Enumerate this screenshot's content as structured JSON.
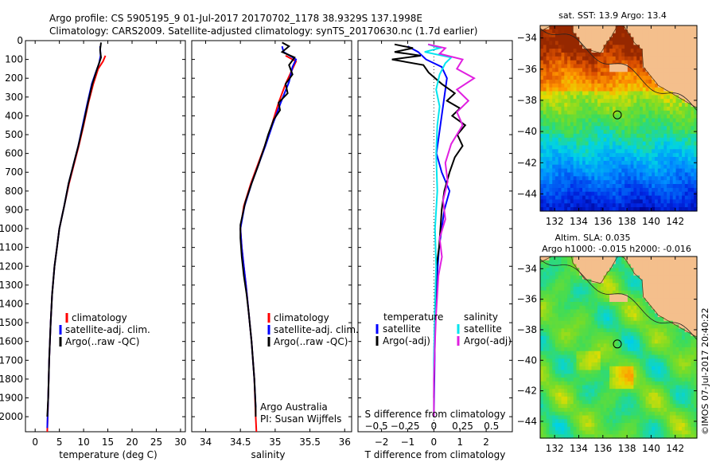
{
  "title": {
    "line1": "Argo profile: CS 5905195_9 01-Jul-2017 20170702_1178 38.9329S 137.1998E",
    "line2": "Climatology: CARS2009. Satellite-adjusted climatology: synTS_20170630.nc (1.7d earlier)"
  },
  "colors": {
    "climatology": "#ff0000",
    "satellite": "#0000ff",
    "argo": "#000000",
    "sal_satellite": "#00e5ee",
    "sal_argo": "#e020e0",
    "land": "#f4bf8c"
  },
  "chart_data": [
    {
      "type": "line",
      "name": "temperature-profile",
      "xlabel": "temperature (deg C)",
      "ylabel": "",
      "xlim": [
        -2,
        31
      ],
      "ylim": [
        2080,
        0
      ],
      "xticks": [
        0,
        5,
        10,
        15,
        20,
        25,
        30
      ],
      "yticks": [
        0,
        100,
        200,
        300,
        400,
        500,
        600,
        700,
        800,
        900,
        1000,
        1100,
        1200,
        1300,
        1400,
        1500,
        1600,
        1700,
        1800,
        1900,
        2000
      ],
      "legend": [
        "climatology",
        "satellite-adj. clim.",
        "Argo(..raw -QC)"
      ],
      "series": [
        {
          "name": "climatology",
          "color": "#ff0000",
          "points": [
            [
              14.5,
              80
            ],
            [
              14.0,
              110
            ],
            [
              13.0,
              150
            ],
            [
              12.0,
              230
            ],
            [
              11.0,
              330
            ],
            [
              10.0,
              450
            ],
            [
              9.0,
              560
            ],
            [
              8.0,
              660
            ],
            [
              7.0,
              760
            ],
            [
              6.0,
              880
            ],
            [
              5.0,
              1000
            ],
            [
              4.5,
              1100
            ],
            [
              4.0,
              1200
            ],
            [
              3.5,
              1350
            ],
            [
              3.2,
              1500
            ],
            [
              2.9,
              1700
            ],
            [
              2.7,
              1900
            ],
            [
              2.5,
              2080
            ]
          ]
        },
        {
          "name": "satellite-adj. clim.",
          "color": "#0000ff",
          "points": [
            [
              13.4,
              30
            ],
            [
              13.5,
              80
            ],
            [
              13.2,
              120
            ],
            [
              12.5,
              170
            ],
            [
              11.7,
              230
            ],
            [
              10.8,
              330
            ],
            [
              9.8,
              450
            ],
            [
              8.9,
              560
            ],
            [
              7.9,
              660
            ],
            [
              6.9,
              760
            ],
            [
              6.0,
              880
            ],
            [
              5.0,
              1000
            ],
            [
              4.5,
              1100
            ],
            [
              4.0,
              1200
            ],
            [
              3.5,
              1350
            ],
            [
              3.2,
              1500
            ],
            [
              2.9,
              1700
            ],
            [
              2.7,
              1900
            ],
            [
              2.5,
              2060
            ]
          ]
        },
        {
          "name": "Argo(..raw -QC)",
          "color": "#000000",
          "points": [
            [
              13.6,
              10
            ],
            [
              13.4,
              50
            ],
            [
              13.6,
              90
            ],
            [
              12.8,
              150
            ],
            [
              11.8,
              230
            ],
            [
              10.9,
              330
            ],
            [
              9.9,
              450
            ],
            [
              8.9,
              560
            ],
            [
              7.9,
              660
            ],
            [
              6.9,
              760
            ],
            [
              6.0,
              880
            ],
            [
              5.0,
              1000
            ],
            [
              4.5,
              1100
            ],
            [
              4.0,
              1200
            ],
            [
              3.5,
              1350
            ],
            [
              3.2,
              1500
            ],
            [
              2.9,
              1700
            ],
            [
              2.7,
              1900
            ],
            [
              2.5,
              2000
            ]
          ]
        }
      ]
    },
    {
      "type": "line",
      "name": "salinity-profile",
      "xlabel": "salinity",
      "xlim": [
        33.8,
        36.1
      ],
      "ylim": [
        2080,
        0
      ],
      "xticks": [
        34,
        34.5,
        35,
        35.5,
        36
      ],
      "legend": [
        "climatology",
        "satellite-adj. clim.",
        "Argo(..raw -QC)"
      ],
      "annotation": [
        "Argo Australia",
        "PI: Susan Wijffels"
      ],
      "series": [
        {
          "name": "climatology",
          "color": "#ff0000",
          "points": [
            [
              35.15,
              80
            ],
            [
              35.3,
              110
            ],
            [
              35.25,
              150
            ],
            [
              35.15,
              230
            ],
            [
              35.05,
              330
            ],
            [
              34.95,
              450
            ],
            [
              34.85,
              560
            ],
            [
              34.75,
              660
            ],
            [
              34.65,
              760
            ],
            [
              34.55,
              880
            ],
            [
              34.5,
              1000
            ],
            [
              34.52,
              1100
            ],
            [
              34.55,
              1200
            ],
            [
              34.58,
              1300
            ],
            [
              34.62,
              1450
            ],
            [
              34.66,
              1600
            ],
            [
              34.7,
              1800
            ],
            [
              34.72,
              2000
            ],
            [
              34.73,
              2080
            ]
          ]
        },
        {
          "name": "satellite-adj. clim.",
          "color": "#0000ff",
          "points": [
            [
              35.1,
              30
            ],
            [
              35.12,
              60
            ],
            [
              35.3,
              100
            ],
            [
              35.25,
              140
            ],
            [
              35.2,
              220
            ],
            [
              35.08,
              330
            ],
            [
              34.96,
              450
            ],
            [
              34.86,
              560
            ],
            [
              34.76,
              660
            ],
            [
              34.66,
              760
            ],
            [
              34.56,
              880
            ],
            [
              34.5,
              1000
            ],
            [
              34.52,
              1100
            ],
            [
              34.55,
              1200
            ],
            [
              34.58,
              1300
            ],
            [
              34.62,
              1450
            ],
            [
              34.66,
              1600
            ],
            [
              34.7,
              1800
            ],
            [
              34.72,
              1950
            ]
          ]
        },
        {
          "name": "Argo(..raw -QC)",
          "color": "#000000",
          "points": [
            [
              35.1,
              10
            ],
            [
              35.2,
              30
            ],
            [
              35.1,
              60
            ],
            [
              35.28,
              90
            ],
            [
              35.2,
              130
            ],
            [
              35.25,
              180
            ],
            [
              35.15,
              230
            ],
            [
              35.18,
              280
            ],
            [
              35.05,
              330
            ],
            [
              35.07,
              370
            ],
            [
              34.98,
              420
            ],
            [
              34.9,
              500
            ],
            [
              34.85,
              560
            ],
            [
              34.76,
              660
            ],
            [
              34.66,
              760
            ],
            [
              34.57,
              860
            ],
            [
              34.5,
              980
            ],
            [
              34.5,
              1050
            ],
            [
              34.52,
              1150
            ],
            [
              34.55,
              1250
            ],
            [
              34.59,
              1350
            ],
            [
              34.62,
              1450
            ],
            [
              34.66,
              1600
            ],
            [
              34.7,
              1800
            ],
            [
              34.72,
              1950
            ],
            [
              34.72,
              2000
            ]
          ]
        }
      ]
    },
    {
      "type": "line",
      "name": "difference-profile",
      "xlabel": "T difference from climatology",
      "xlabel_top": "S difference from climatology",
      "xlim": [
        -2.9,
        3.0
      ],
      "ylim": [
        2080,
        0
      ],
      "xticks": [
        -2,
        -1,
        0,
        1,
        2
      ],
      "xticks_top": [
        -0.5,
        -0.25,
        0,
        0.25,
        0.5
      ],
      "legend_temperature_header": "temperature",
      "legend_salinity_header": "salinity",
      "legend": [
        "satellite",
        "Argo(-adj)",
        "satellite",
        "Argo(-adj)"
      ],
      "series": [
        {
          "name": "T satellite",
          "color": "#0000ff",
          "points": [
            [
              -1.0,
              30
            ],
            [
              -0.6,
              60
            ],
            [
              -0.3,
              100
            ],
            [
              0.3,
              140
            ],
            [
              0.5,
              200
            ],
            [
              0.4,
              300
            ],
            [
              0.3,
              400
            ],
            [
              0.2,
              500
            ],
            [
              0.1,
              600
            ],
            [
              0.3,
              700
            ],
            [
              0.6,
              800
            ],
            [
              0.4,
              900
            ],
            [
              0.3,
              1000
            ],
            [
              0.2,
              1100
            ],
            [
              0.15,
              1200
            ],
            [
              0.1,
              1300
            ],
            [
              0.05,
              1500
            ],
            [
              0.02,
              1800
            ],
            [
              0.0,
              2000
            ]
          ]
        },
        {
          "name": "T Argo(-adj)",
          "color": "#000000",
          "points": [
            [
              -1.5,
              20
            ],
            [
              -0.8,
              40
            ],
            [
              -1.5,
              60
            ],
            [
              -0.5,
              80
            ],
            [
              -1.6,
              100
            ],
            [
              -0.4,
              130
            ],
            [
              -0.2,
              170
            ],
            [
              0.3,
              230
            ],
            [
              0.8,
              280
            ],
            [
              0.5,
              320
            ],
            [
              1.0,
              360
            ],
            [
              0.7,
              400
            ],
            [
              1.2,
              450
            ],
            [
              0.9,
              500
            ],
            [
              1.1,
              560
            ],
            [
              0.8,
              620
            ],
            [
              0.6,
              700
            ],
            [
              0.4,
              800
            ],
            [
              0.3,
              900
            ],
            [
              0.25,
              1000
            ],
            [
              0.2,
              1100
            ],
            [
              0.1,
              1200
            ],
            [
              0.05,
              1400
            ],
            [
              0.02,
              1600
            ],
            [
              0.0,
              1900
            ]
          ]
        },
        {
          "name": "S satellite",
          "color": "#00e5ee",
          "points": [
            [
              -0.05,
              20
            ],
            [
              0.05,
              40
            ],
            [
              -0.08,
              60
            ],
            [
              0.15,
              90
            ],
            [
              0.1,
              120
            ],
            [
              0.05,
              180
            ],
            [
              0.02,
              260
            ],
            [
              0.05,
              350
            ],
            [
              0.03,
              450
            ],
            [
              0.02,
              600
            ],
            [
              0.03,
              800
            ],
            [
              0.01,
              1000
            ],
            [
              0.02,
              1200
            ],
            [
              0.01,
              1400
            ],
            [
              0.0,
              1700
            ],
            [
              0.0,
              2000
            ]
          ]
        },
        {
          "name": "S Argo(-adj)",
          "color": "#e020e0",
          "points": [
            [
              -0.05,
              20
            ],
            [
              0.1,
              40
            ],
            [
              0.05,
              70
            ],
            [
              0.25,
              100
            ],
            [
              0.2,
              150
            ],
            [
              0.35,
              200
            ],
            [
              0.2,
              260
            ],
            [
              0.3,
              320
            ],
            [
              0.2,
              380
            ],
            [
              0.25,
              450
            ],
            [
              0.15,
              550
            ],
            [
              0.1,
              650
            ],
            [
              0.12,
              750
            ],
            [
              0.08,
              850
            ],
            [
              0.1,
              950
            ],
            [
              0.05,
              1050
            ],
            [
              0.07,
              1150
            ],
            [
              0.04,
              1250
            ],
            [
              0.03,
              1350
            ],
            [
              0.02,
              1450
            ],
            [
              0.01,
              1600
            ],
            [
              0.0,
              1800
            ],
            [
              0.0,
              2000
            ]
          ]
        }
      ]
    },
    {
      "type": "heatmap",
      "name": "sst-map",
      "title": "sat. SST: 13.9 Argo: 13.4",
      "xlim": [
        130.8,
        143.8
      ],
      "ylim": [
        -45.1,
        -33.2
      ],
      "xticks": [
        132,
        134,
        136,
        138,
        140,
        142
      ],
      "yticks": [
        -34,
        -36,
        -38,
        -40,
        -42,
        -44
      ],
      "argo_position": [
        137.2,
        -38.93
      ]
    },
    {
      "type": "heatmap",
      "name": "sla-map",
      "title_line1": "Altim. SLA: 0.035",
      "title_line2": "Argo h1000: -0.015 h2000: -0.016",
      "xlim": [
        130.8,
        143.8
      ],
      "ylim": [
        -45.1,
        -33.2
      ],
      "xticks": [
        132,
        134,
        136,
        138,
        140,
        142
      ],
      "yticks": [
        -34,
        -36,
        -38,
        -40,
        -42,
        -44
      ],
      "argo_position": [
        137.2,
        -38.93
      ]
    }
  ],
  "credit": "©IMOS 07-Jul-2017 20:40:22"
}
